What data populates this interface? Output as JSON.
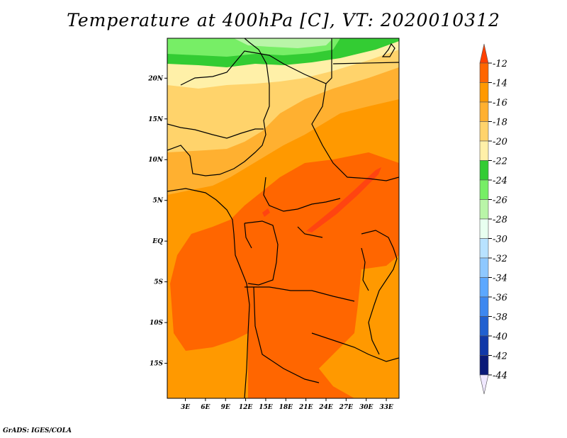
{
  "title": "Temperature at 400hPa [C], VT: 2020010312",
  "credit": "GrADS: IGES/COLA",
  "colors": {
    "t_ge_m14": "#ff6600",
    "t_m16_m14": "#ff9900",
    "t_m18_m16": "#ffb030",
    "t_m20_m18": "#ffd36b",
    "t_m22_m20": "#fff0a8",
    "t_m24_m22": "#33cc33",
    "t_m26_m24": "#77ee66",
    "t_m28_m26": "#b9f5a8",
    "max_band": "#ff4411",
    "coast": "#000000"
  },
  "chart_data": {
    "type": "heatmap",
    "title": "Temperature at 400hPa [C], VT: 2020010312",
    "x_ticks": [
      "3E",
      "6E",
      "9E",
      "12E",
      "15E",
      "18E",
      "21E",
      "24E",
      "27E",
      "30E",
      "33E"
    ],
    "x_values": [
      3,
      6,
      9,
      12,
      15,
      18,
      21,
      24,
      27,
      30,
      33
    ],
    "y_ticks": [
      "20N",
      "15N",
      "10N",
      "5N",
      "EQ",
      "5S",
      "10S",
      "15S"
    ],
    "y_values": [
      20,
      15,
      10,
      5,
      0,
      -5,
      -10,
      -15
    ],
    "xlim": [
      0.3,
      34.9
    ],
    "ylim": [
      -19.3,
      24.9
    ],
    "colorbar": {
      "labels": [
        "-12",
        "-14",
        "-16",
        "-18",
        "-20",
        "-22",
        "-24",
        "-26",
        "-28",
        "-30",
        "-32",
        "-34",
        "-36",
        "-38",
        "-40",
        "-42",
        "-44"
      ],
      "colors": [
        "#ff4000",
        "#ff6600",
        "#ff9900",
        "#ffb030",
        "#ffd36b",
        "#fff0a8",
        "#33cc33",
        "#77ee66",
        "#b9f5a8",
        "#e8fff0",
        "#b8e2ff",
        "#8ec8ff",
        "#5ca8ff",
        "#3d88f0",
        "#2060d0",
        "#1038a8",
        "#0a1a78",
        "#f0e8ff"
      ]
    }
  }
}
